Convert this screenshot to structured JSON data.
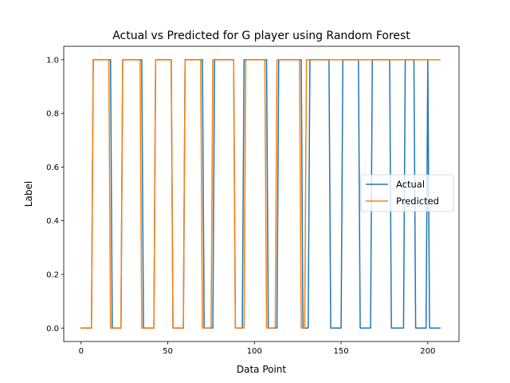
{
  "chart_data": {
    "type": "line",
    "title": "Actual vs Predicted for G player using Random Forest",
    "xlabel": "Data Point",
    "ylabel": "Label",
    "xlim": [
      -10,
      218
    ],
    "ylim": [
      -0.05,
      1.05
    ],
    "xticks": [
      0,
      50,
      100,
      150,
      200
    ],
    "yticks": [
      0.0,
      0.2,
      0.4,
      0.6,
      0.8,
      1.0
    ],
    "xtick_labels": [
      "0",
      "50",
      "100",
      "150",
      "200"
    ],
    "ytick_labels": [
      "0.0",
      "0.2",
      "0.4",
      "0.6",
      "0.8",
      "1.0"
    ],
    "grid": false,
    "legend_position": "center-right",
    "series": [
      {
        "name": "Actual",
        "color": "#1f77b4",
        "points": [
          [
            0,
            0
          ],
          [
            3,
            0
          ],
          [
            6,
            0
          ],
          [
            7,
            1
          ],
          [
            17,
            1
          ],
          [
            18,
            0
          ],
          [
            23,
            0
          ],
          [
            24,
            1
          ],
          [
            35,
            1
          ],
          [
            36,
            0
          ],
          [
            42,
            0
          ],
          [
            43,
            1
          ],
          [
            52,
            1
          ],
          [
            53,
            0
          ],
          [
            59,
            0
          ],
          [
            60,
            1
          ],
          [
            70,
            1
          ],
          [
            71,
            0
          ],
          [
            76,
            0
          ],
          [
            77,
            1
          ],
          [
            88,
            1
          ],
          [
            89,
            0
          ],
          [
            93,
            0
          ],
          [
            94,
            1
          ],
          [
            107,
            1
          ],
          [
            108,
            0
          ],
          [
            113,
            0
          ],
          [
            114,
            1
          ],
          [
            127,
            1
          ],
          [
            128,
            0
          ],
          [
            131,
            0
          ],
          [
            132,
            1
          ],
          [
            143,
            1
          ],
          [
            144,
            0
          ],
          [
            150,
            0
          ],
          [
            151,
            1
          ],
          [
            160,
            1
          ],
          [
            161,
            0
          ],
          [
            167,
            0
          ],
          [
            168,
            1
          ],
          [
            178,
            1
          ],
          [
            179,
            0
          ],
          [
            186,
            0
          ],
          [
            187,
            1
          ],
          [
            192,
            1
          ],
          [
            193,
            0
          ],
          [
            199,
            0
          ],
          [
            200,
            1
          ],
          [
            201,
            0
          ],
          [
            207,
            0
          ]
        ]
      },
      {
        "name": "Predicted",
        "color": "#ff7f0e",
        "points": [
          [
            0,
            0
          ],
          [
            3,
            0
          ],
          [
            6,
            0
          ],
          [
            7,
            1
          ],
          [
            16,
            1
          ],
          [
            17,
            0
          ],
          [
            23,
            0
          ],
          [
            24,
            1
          ],
          [
            34,
            1
          ],
          [
            35,
            0
          ],
          [
            42,
            0
          ],
          [
            43,
            1
          ],
          [
            52,
            1
          ],
          [
            53,
            0
          ],
          [
            59,
            0
          ],
          [
            60,
            1
          ],
          [
            69,
            1
          ],
          [
            70,
            0
          ],
          [
            75,
            0
          ],
          [
            76,
            1
          ],
          [
            88,
            1
          ],
          [
            89,
            0
          ],
          [
            94,
            0
          ],
          [
            95,
            1
          ],
          [
            106,
            1
          ],
          [
            107,
            0
          ],
          [
            112,
            0
          ],
          [
            113,
            1
          ],
          [
            126,
            1
          ],
          [
            127,
            0
          ],
          [
            129,
            0
          ],
          [
            130,
            1
          ],
          [
            207,
            1
          ]
        ]
      }
    ]
  }
}
